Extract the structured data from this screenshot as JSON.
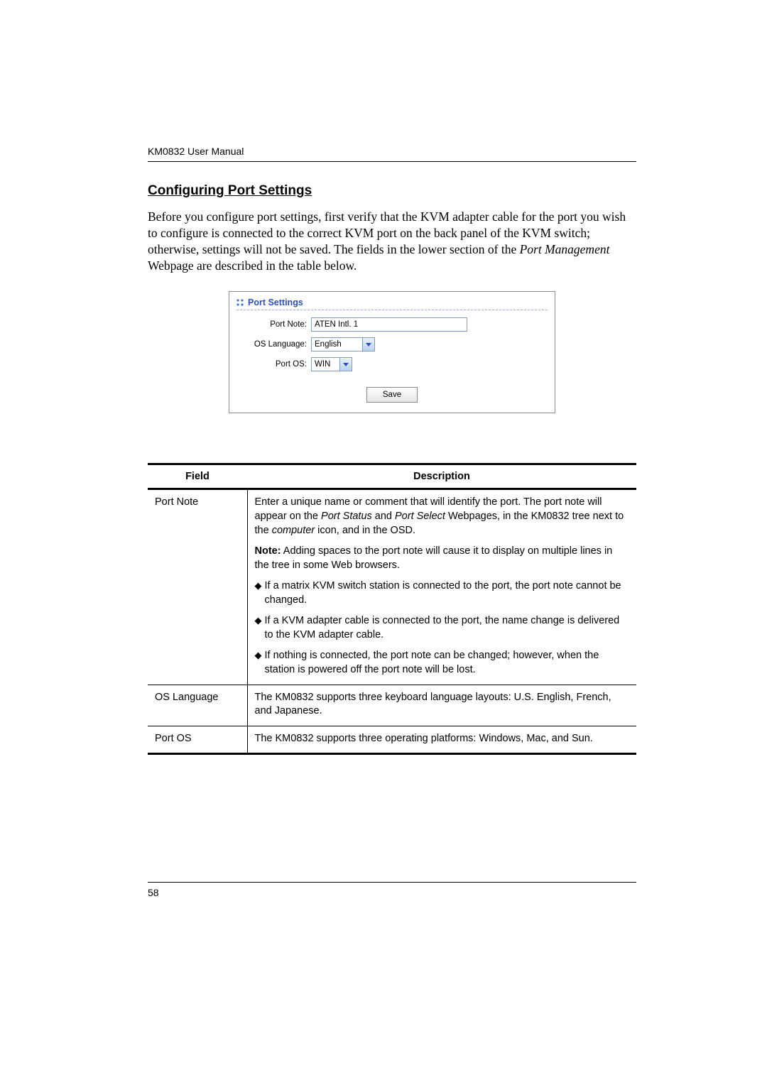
{
  "header": {
    "running": "KM0832 User Manual"
  },
  "section": {
    "title": "Configuring Port Settings",
    "para_before": "Before you configure port settings, first verify that the KVM adapter cable for the port you wish to configure is connected to the correct KVM port on the back panel of the KVM switch; otherwise, settings will not be saved. The fields in the lower section of the ",
    "para_italic": "Port Management",
    "para_after": " Webpage are described in the table below."
  },
  "panel": {
    "title": "Port Settings",
    "rows": {
      "port_note": {
        "label": "Port Note:",
        "value": "ATEN Intl. 1"
      },
      "os_lang": {
        "label": "OS Language:",
        "value": "English"
      },
      "port_os": {
        "label": "Port OS:",
        "value": "WIN"
      }
    },
    "save_label": "Save"
  },
  "table": {
    "columns": [
      "Field",
      "Description"
    ],
    "rows": [
      {
        "field": "Port Note",
        "desc_p1a": "Enter a unique name or comment that will identify the port. The port note will appear on the ",
        "desc_p1i1": "Port Status",
        "desc_p1b": " and ",
        "desc_p1i2": "Port Select",
        "desc_p1c": " Webpages, in the KM0832 tree next to the ",
        "desc_p1i3": "computer",
        "desc_p1d": " icon, and in the OSD.",
        "note_label": "Note:",
        "note_text": " Adding spaces to the port note will cause it to display on multiple lines in the tree in some Web browsers.",
        "bullets": [
          "If a matrix KVM switch station is connected to the port, the port note cannot be changed.",
          "If a KVM adapter cable is connected to the port, the name change is delivered to the KVM adapter cable.",
          "If nothing is connected, the port note can be changed; however, when the station is powered off the port note will be lost."
        ]
      },
      {
        "field": "OS Language",
        "desc": "The KM0832 supports three keyboard language layouts: U.S. English, French, and Japanese."
      },
      {
        "field": "Port OS",
        "desc": "The KM0832 supports three operating platforms: Windows, Mac, and Sun."
      }
    ]
  },
  "page_number": "58",
  "style": {
    "body_font": "Times New Roman",
    "ui_font": "Arial",
    "panel_font": "Tahoma",
    "accent_blue": "#2a4fbf",
    "input_border": "#7f9db9",
    "rule_black": "#000000"
  }
}
